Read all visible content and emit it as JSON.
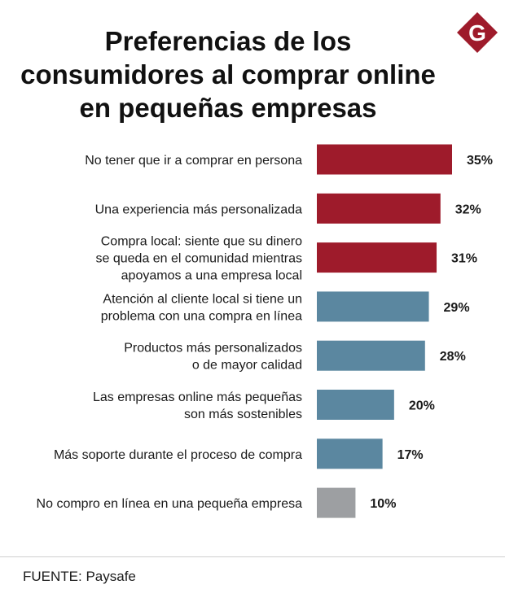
{
  "header": {
    "title_lines": [
      "Preferencias de los",
      "consumidores al comprar online",
      "en pequeñas empresas"
    ],
    "logo": {
      "letter": "G",
      "icon": "gestion-logo-icon",
      "color": "#9e1b2b"
    }
  },
  "colors": {
    "red": "#9e1b2b",
    "blue": "#5b87a0",
    "gray": "#9d9fa2"
  },
  "chart_data": {
    "type": "bar",
    "orientation": "horizontal",
    "title": "Preferencias de los consumidores al comprar online en pequeñas empresas",
    "unit": "%",
    "xlim": [
      0,
      35
    ],
    "categories": [
      [
        "No tener que ir a comprar en persona"
      ],
      [
        "Una experiencia más personalizada"
      ],
      [
        "Compra local: siente que su dinero",
        "se queda en el comunidad mientras",
        "apoyamos a una empresa local"
      ],
      [
        "Atención al cliente local si tiene un",
        "problema con una compra en línea"
      ],
      [
        "Productos más personalizados",
        "o de mayor calidad"
      ],
      [
        "Las empresas online más pequeñas",
        "son más sostenibles"
      ],
      [
        "Más soporte durante el proceso de compra"
      ],
      [
        "No compro en línea en una pequeña empresa"
      ]
    ],
    "values": [
      35,
      32,
      31,
      29,
      28,
      20,
      17,
      10
    ],
    "value_labels": [
      "35%",
      "32%",
      "31%",
      "29%",
      "28%",
      "20%",
      "17%",
      "10%"
    ],
    "bar_colors": [
      "red",
      "red",
      "red",
      "blue",
      "blue",
      "blue",
      "blue",
      "gray"
    ]
  },
  "footer": {
    "source": "FUENTE: Paysafe"
  }
}
